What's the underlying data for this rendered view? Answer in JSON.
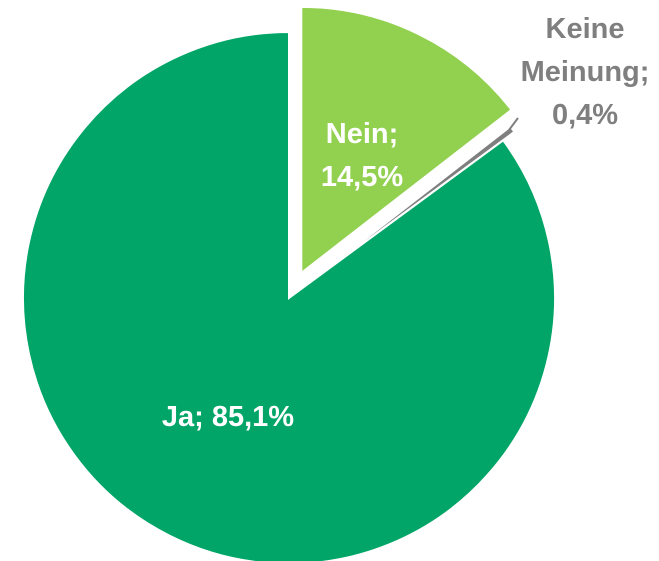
{
  "chart_data": {
    "type": "pie",
    "values": [
      14.5,
      0.4,
      85.1
    ],
    "value_labels": [
      "Nein; 14,5%",
      "Keine Meinung; 0,4%",
      "Ja; 85,1%"
    ],
    "colors": [
      "#92d050",
      "#7f7f7f",
      "#00a567"
    ]
  }
}
